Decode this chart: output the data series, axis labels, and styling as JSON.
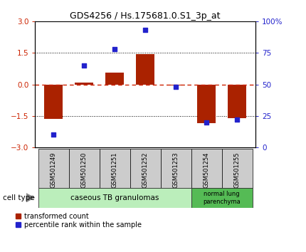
{
  "title": "GDS4256 / Hs.175681.0.S1_3p_at",
  "samples": [
    "GSM501249",
    "GSM501250",
    "GSM501251",
    "GSM501252",
    "GSM501253",
    "GSM501254",
    "GSM501255"
  ],
  "transformed_count": [
    -1.65,
    0.1,
    0.55,
    1.45,
    -0.05,
    -1.85,
    -1.6
  ],
  "percentile_rank": [
    10,
    65,
    78,
    93,
    48,
    20,
    22
  ],
  "bar_color": "#aa2200",
  "dot_color": "#2222cc",
  "ylim_left": [
    -3,
    3
  ],
  "ylim_right": [
    0,
    100
  ],
  "yticks_left": [
    -3,
    -1.5,
    0,
    1.5,
    3
  ],
  "yticks_right": [
    0,
    25,
    50,
    75,
    100
  ],
  "zero_line_color": "#cc2200",
  "dotted_line_color": "black",
  "group1_label": "caseous TB granulomas",
  "group1_color": "#bbeebb",
  "group2_label": "normal lung\nparenchyma",
  "group2_color": "#55bb55",
  "cell_type_label": "cell type",
  "legend_red": "transformed count",
  "legend_blue": "percentile rank within the sample",
  "bg_color": "white",
  "tick_label_area_color": "#cccccc"
}
